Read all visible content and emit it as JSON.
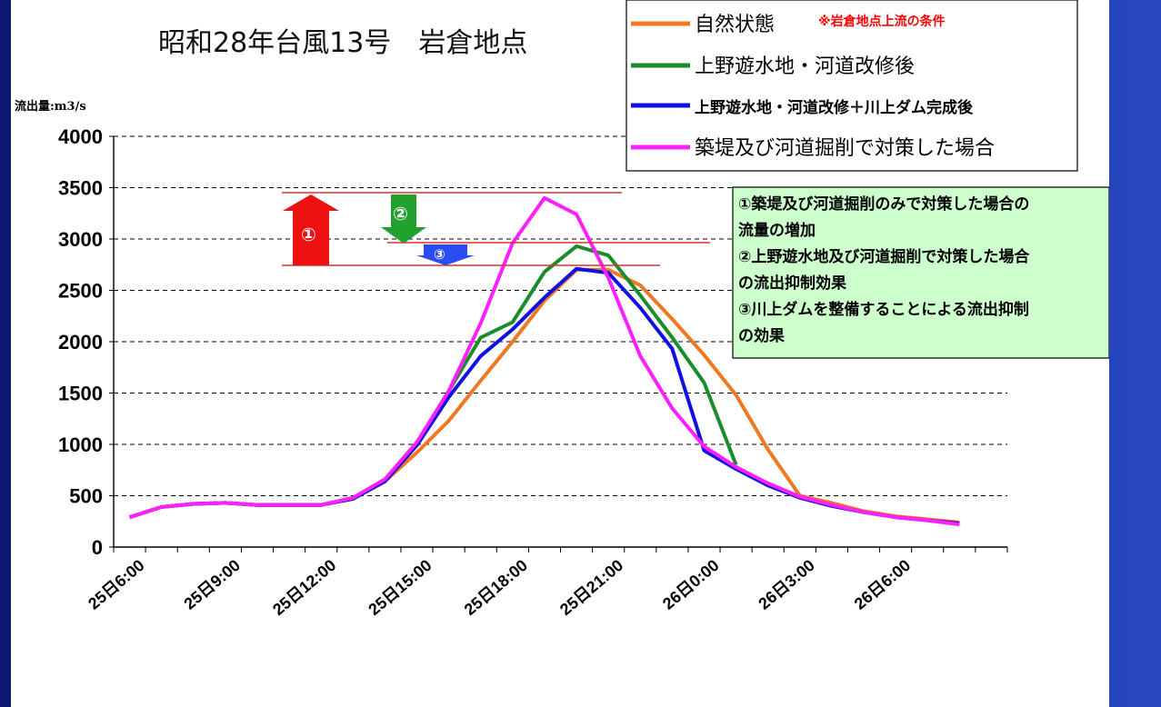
{
  "chart_data": {
    "type": "line",
    "title": "昭和28年台風13号　岩倉地点",
    "ylabel": "流出量:m3/s",
    "ylim": [
      0,
      4000
    ],
    "yticks": [
      0,
      500,
      1000,
      1500,
      2000,
      2500,
      3000,
      3500,
      4000
    ],
    "xtick_labels": [
      "25日6:00",
      "25日9:00",
      "25日12:00",
      "25日15:00",
      "25日18:00",
      "25日21:00",
      "26日0:00",
      "26日3:00",
      "26日6:00"
    ],
    "n_points": 28,
    "legend_note": "※岩倉地点上流の条件",
    "series": [
      {
        "name": "自然状態",
        "color": "#f07820",
        "values": [
          290,
          390,
          420,
          430,
          410,
          410,
          410,
          470,
          640,
          920,
          1230,
          1620,
          2000,
          2400,
          2700,
          2700,
          2550,
          2220,
          1870,
          1480,
          950,
          500,
          430,
          350,
          300,
          270,
          240,
          null
        ]
      },
      {
        "name": "上野遊水地・河道改修後",
        "color": "#1a8c2a",
        "values": [
          290,
          390,
          420,
          430,
          410,
          410,
          410,
          480,
          650,
          1000,
          1520,
          2040,
          2190,
          2680,
          2930,
          2840,
          2450,
          2040,
          1600,
          800,
          null,
          null,
          null,
          null,
          null,
          null,
          null,
          null
        ]
      },
      {
        "name": "上野遊水地・河道改修＋川上ダム完成後",
        "color": "#1010e0",
        "values": [
          290,
          390,
          420,
          430,
          410,
          410,
          410,
          470,
          640,
          990,
          1460,
          1860,
          2120,
          2430,
          2710,
          2670,
          2330,
          1930,
          940,
          760,
          600,
          480,
          400,
          340,
          290,
          260,
          230,
          null
        ]
      },
      {
        "name": "築堤及び河道掘削で対策した場合",
        "color": "#ff20ff",
        "values": [
          290,
          390,
          420,
          430,
          410,
          410,
          410,
          480,
          660,
          1020,
          1520,
          2180,
          2960,
          3400,
          3240,
          2620,
          1860,
          1350,
          980,
          780,
          620,
          490,
          410,
          340,
          290,
          260,
          220,
          null
        ]
      }
    ],
    "annotations": {
      "box_lines": [
        "①築堤及び河道掘削のみで対策した場合の",
        "流量の増加",
        "②上野遊水地及び河道掘削で対策した場合",
        "の流出抑制効果",
        "③川上ダムを整備することによる流出抑制",
        "の効果"
      ],
      "marker1": "①",
      "marker2": "②",
      "marker3": "③"
    }
  }
}
